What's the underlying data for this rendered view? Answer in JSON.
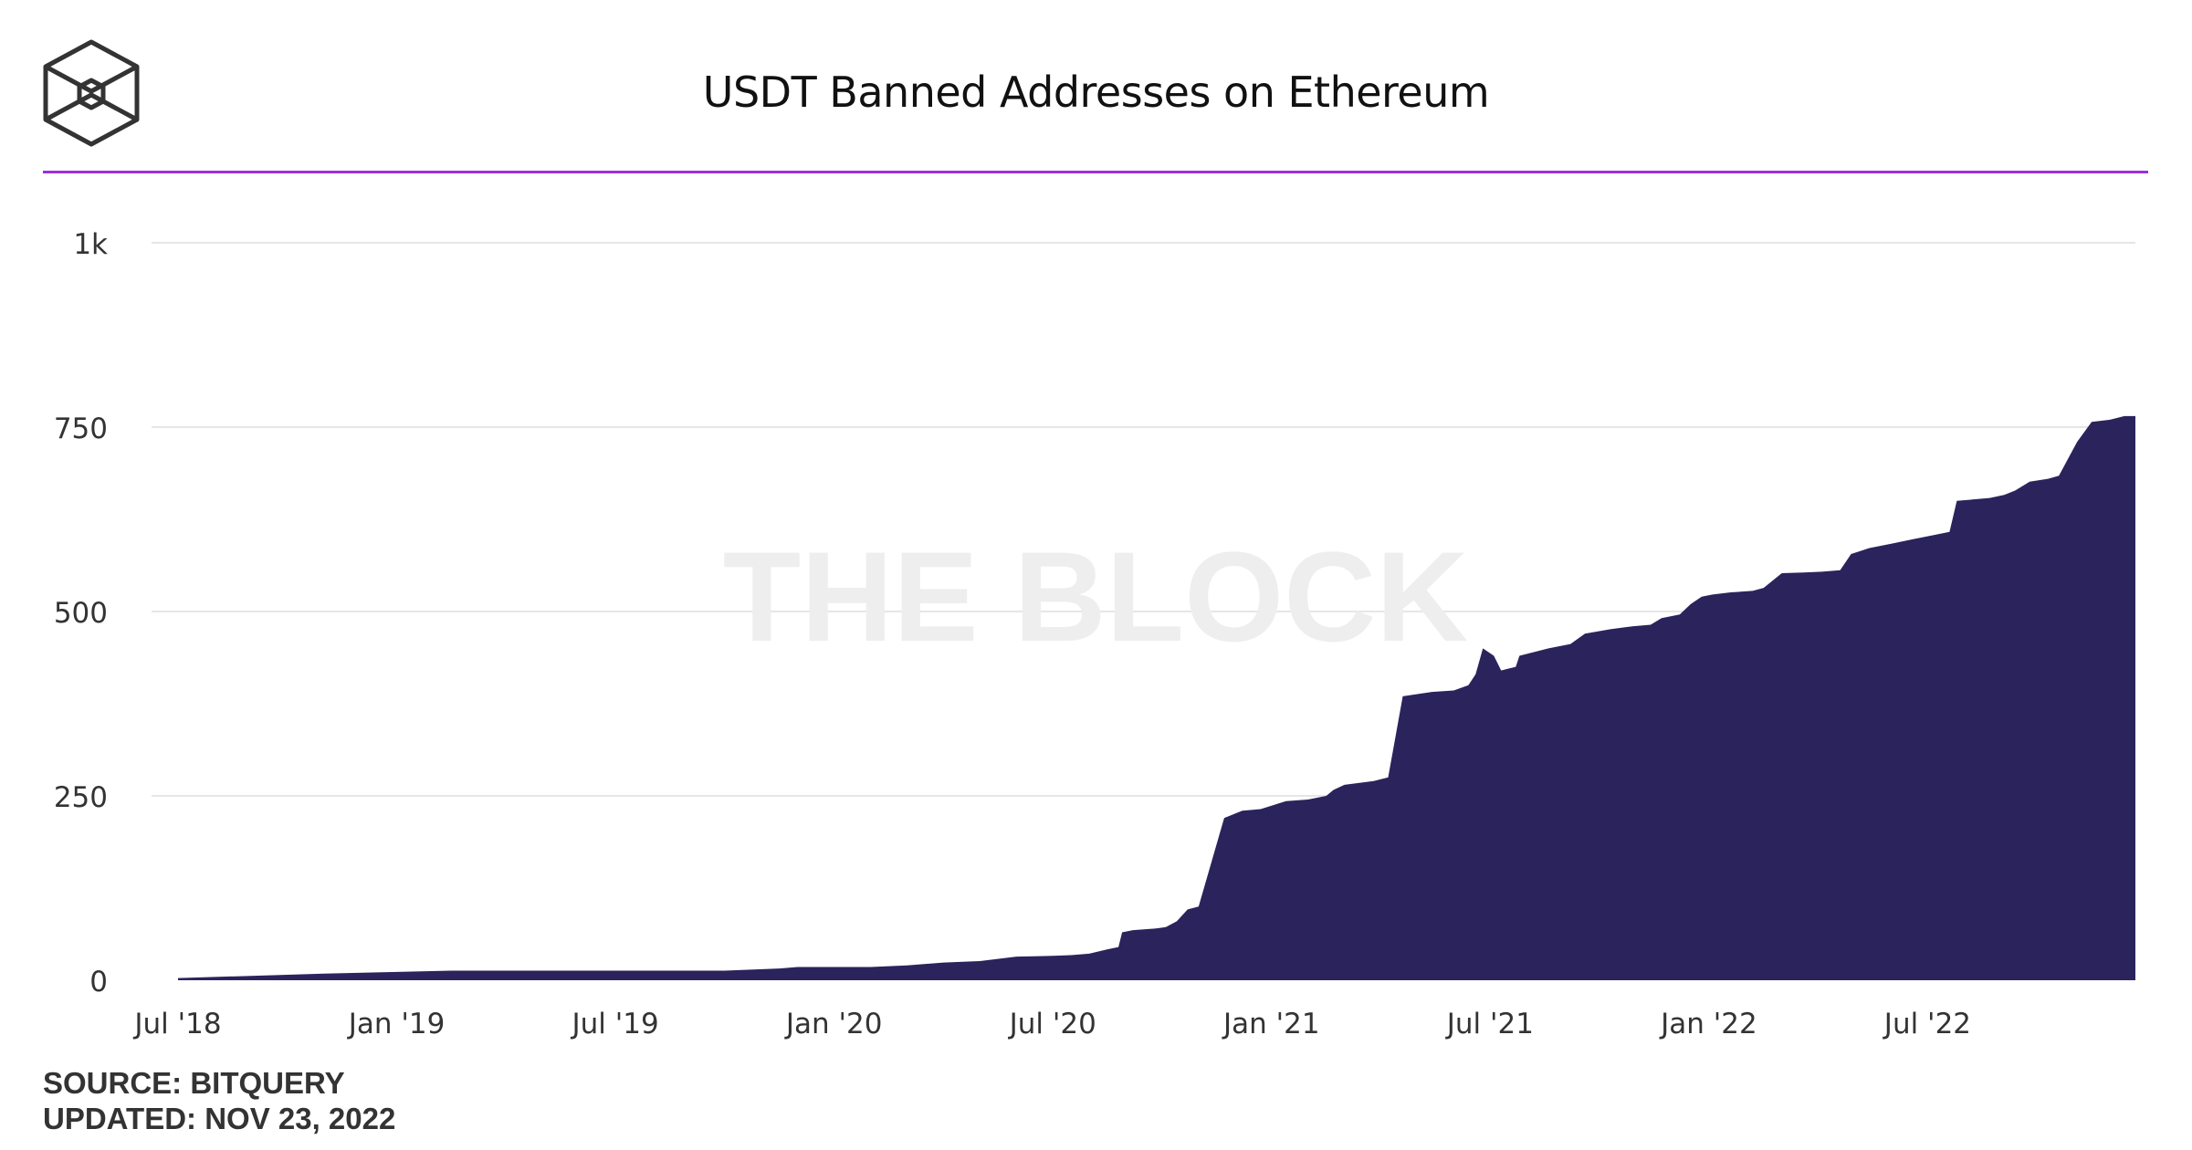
{
  "header": {
    "logo_name": "the-block-cube-logo"
  },
  "chart_data": {
    "type": "area",
    "title": "USDT Banned Addresses on Ethereum",
    "watermark": "THE BLOCK",
    "xlabel": "",
    "ylabel": "",
    "ylim": [
      0,
      1000
    ],
    "y_ticks": [
      {
        "value": 0,
        "label": "0"
      },
      {
        "value": 250,
        "label": "250"
      },
      {
        "value": 500,
        "label": "500"
      },
      {
        "value": 750,
        "label": "750"
      },
      {
        "value": 1000,
        "label": "1k"
      }
    ],
    "x_domain_months": [
      0,
      53.7
    ],
    "x_ticks": [
      {
        "m": 0,
        "label": "Jul '18"
      },
      {
        "m": 6,
        "label": "Jan '19"
      },
      {
        "m": 12,
        "label": "Jul '19"
      },
      {
        "m": 18,
        "label": "Jan '20"
      },
      {
        "m": 24,
        "label": "Jul '20"
      },
      {
        "m": 30,
        "label": "Jan '21"
      },
      {
        "m": 36,
        "label": "Jul '21"
      },
      {
        "m": 42,
        "label": "Jan '22"
      },
      {
        "m": 48,
        "label": "Jul '22"
      }
    ],
    "x_unit": "months since Jul 2018",
    "series": [
      {
        "name": "USDT Banned Addresses",
        "color": "#2b235c",
        "points": [
          [
            0,
            3
          ],
          [
            2,
            6
          ],
          [
            4,
            9
          ],
          [
            7.5,
            13
          ],
          [
            12,
            13
          ],
          [
            15,
            13
          ],
          [
            16.5,
            16
          ],
          [
            17,
            18
          ],
          [
            19,
            18
          ],
          [
            20,
            20
          ],
          [
            21,
            24
          ],
          [
            22,
            26
          ],
          [
            23,
            32
          ],
          [
            24,
            33
          ],
          [
            24.5,
            34
          ],
          [
            25,
            36
          ],
          [
            25.5,
            42
          ],
          [
            25.8,
            45
          ],
          [
            25.9,
            65
          ],
          [
            26.2,
            68
          ],
          [
            26.8,
            70
          ],
          [
            27.1,
            72
          ],
          [
            27.4,
            80
          ],
          [
            27.7,
            96
          ],
          [
            28,
            100
          ],
          [
            28.7,
            220
          ],
          [
            29.2,
            230
          ],
          [
            29.7,
            232
          ],
          [
            30.4,
            243
          ],
          [
            31,
            245
          ],
          [
            31.5,
            250
          ],
          [
            31.7,
            258
          ],
          [
            32,
            265
          ],
          [
            32.8,
            270
          ],
          [
            33.2,
            275
          ],
          [
            33.6,
            385
          ],
          [
            34.4,
            391
          ],
          [
            35,
            393
          ],
          [
            35.4,
            400
          ],
          [
            35.6,
            415
          ],
          [
            35.8,
            450
          ],
          [
            36.1,
            440
          ],
          [
            36.3,
            420
          ],
          [
            36.7,
            425
          ],
          [
            36.8,
            440
          ],
          [
            37.6,
            450
          ],
          [
            38.2,
            456
          ],
          [
            38.6,
            470
          ],
          [
            39.3,
            476
          ],
          [
            39.9,
            480
          ],
          [
            40.4,
            482
          ],
          [
            40.7,
            491
          ],
          [
            41.2,
            496
          ],
          [
            41.5,
            510
          ],
          [
            41.8,
            520
          ],
          [
            42.1,
            523
          ],
          [
            42.6,
            526
          ],
          [
            43.2,
            528
          ],
          [
            43.5,
            532
          ],
          [
            44,
            552
          ],
          [
            44.6,
            553
          ],
          [
            45.1,
            554
          ],
          [
            45.6,
            556
          ],
          [
            45.9,
            578
          ],
          [
            46.4,
            586
          ],
          [
            47,
            592
          ],
          [
            47.6,
            598
          ],
          [
            48.2,
            604
          ],
          [
            48.6,
            608
          ],
          [
            48.8,
            650
          ],
          [
            49.7,
            654
          ],
          [
            50.1,
            658
          ],
          [
            50.4,
            664
          ],
          [
            50.8,
            676
          ],
          [
            51.3,
            680
          ],
          [
            51.6,
            684
          ],
          [
            52.1,
            730
          ],
          [
            52.5,
            757
          ],
          [
            53,
            760
          ],
          [
            53.4,
            765
          ],
          [
            53.7,
            765
          ]
        ]
      }
    ]
  },
  "footer": {
    "source": "SOURCE: BITQUERY",
    "updated": "UPDATED: NOV 23, 2022"
  }
}
